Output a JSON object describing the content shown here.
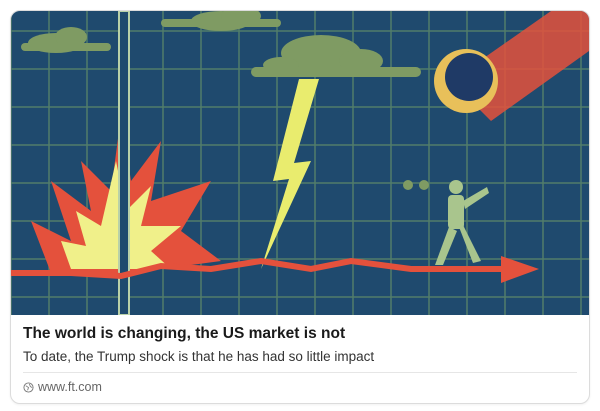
{
  "preview": {
    "title": "The world is changing, the US market is not",
    "description": "To date, the Trump shock is that he has had so little impact",
    "source": "www.ft.com",
    "source_icon": "link-globe-icon"
  },
  "colors": {
    "background": "#1f4a6e",
    "grid": "#5f8a6a",
    "cloud": "#7f9b63",
    "bolt": "#e9ec6e",
    "arrow": "#e4513c",
    "explosion": "#f0f08a"
  }
}
